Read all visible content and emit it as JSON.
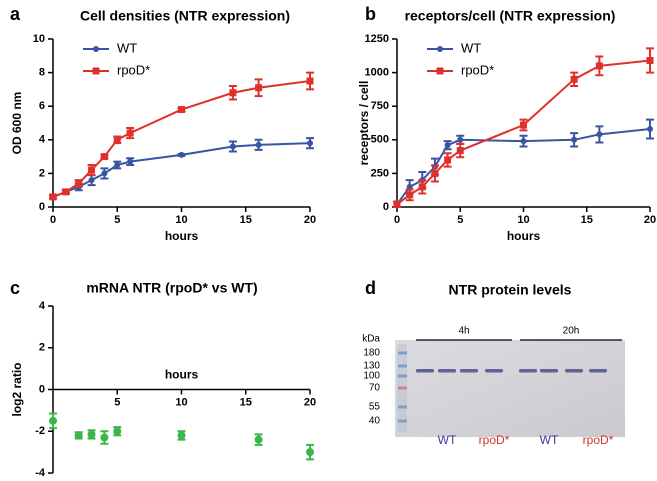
{
  "chart_data": [
    {
      "type": "line",
      "panel": "a",
      "title": "Cell densities (NTR expression)",
      "xlabel": "hours",
      "ylabel": "OD 600 nm",
      "xlim": [
        0,
        20
      ],
      "xticks": [
        0,
        5,
        10,
        15,
        20
      ],
      "ylim": [
        0,
        10
      ],
      "yticks": [
        0,
        2,
        4,
        6,
        8,
        10
      ],
      "legend": "upper-left",
      "series": [
        {
          "name": "WT",
          "color": "#3a54a4",
          "marker": "circle",
          "x": [
            0,
            1,
            2,
            3,
            4,
            5,
            6,
            10,
            14,
            16,
            20
          ],
          "values": [
            0.6,
            0.9,
            1.2,
            1.6,
            2.0,
            2.5,
            2.7,
            3.1,
            3.6,
            3.7,
            3.8
          ],
          "error": [
            0.1,
            0.1,
            0.2,
            0.3,
            0.3,
            0.2,
            0.2,
            0.05,
            0.3,
            0.3,
            0.3
          ]
        },
        {
          "name": "rpoD*",
          "color": "#e0302b",
          "marker": "square",
          "x": [
            0,
            1,
            2,
            3,
            4,
            5,
            6,
            10,
            14,
            16,
            20
          ],
          "values": [
            0.6,
            0.9,
            1.4,
            2.2,
            3.0,
            4.0,
            4.4,
            5.8,
            6.8,
            7.1,
            7.5
          ],
          "error": [
            0.1,
            0.1,
            0.2,
            0.3,
            0.1,
            0.2,
            0.3,
            0.1,
            0.4,
            0.5,
            0.5
          ]
        }
      ]
    },
    {
      "type": "line",
      "panel": "b",
      "title": "receptors/cell (NTR expression)",
      "xlabel": "hours",
      "ylabel": "receptors / cell",
      "xlim": [
        0,
        20
      ],
      "xticks": [
        0,
        5,
        10,
        15,
        20
      ],
      "ylim": [
        0,
        1250
      ],
      "yticks": [
        0,
        250,
        500,
        750,
        1000,
        1250
      ],
      "legend": "upper-left",
      "series": [
        {
          "name": "WT",
          "color": "#3a54a4",
          "marker": "circle",
          "x": [
            0,
            1,
            2,
            3,
            4,
            5,
            10,
            14,
            16,
            20
          ],
          "values": [
            20,
            150,
            200,
            300,
            460,
            500,
            490,
            500,
            540,
            580
          ],
          "error": [
            20,
            50,
            60,
            60,
            30,
            30,
            40,
            50,
            60,
            70
          ]
        },
        {
          "name": "rpoD*",
          "color": "#e0302b",
          "marker": "square",
          "x": [
            0,
            1,
            2,
            3,
            4,
            5,
            10,
            14,
            16,
            20
          ],
          "values": [
            20,
            90,
            150,
            250,
            350,
            420,
            610,
            950,
            1050,
            1090
          ],
          "error": [
            20,
            40,
            50,
            60,
            50,
            50,
            40,
            50,
            70,
            90
          ]
        }
      ]
    },
    {
      "type": "scatter",
      "panel": "c",
      "title": "mRNA NTR (rpoD* vs WT)",
      "xlabel": "hours",
      "ylabel": "log2 ratio",
      "xlim": [
        0,
        20
      ],
      "xticks": [
        5,
        10,
        15,
        20
      ],
      "ylim": [
        -4,
        4
      ],
      "yticks": [
        -4,
        -2,
        0,
        2,
        4
      ],
      "series": [
        {
          "color": "#3cb54a",
          "marker": "circle",
          "x": [
            0,
            2,
            3,
            4,
            5,
            10,
            16,
            20
          ],
          "values": [
            -1.5,
            -2.2,
            -2.15,
            -2.3,
            -2.0,
            -2.2,
            -2.4,
            -3.0
          ],
          "error": [
            0.35,
            0.15,
            0.2,
            0.3,
            0.2,
            0.2,
            0.25,
            0.35
          ]
        }
      ]
    }
  ],
  "gel": {
    "panel": "d",
    "title": "NTR protein levels",
    "unit": "kDa",
    "markers": [
      180,
      130,
      100,
      70,
      55,
      40
    ],
    "groups": [
      "4h",
      "20h"
    ],
    "lanes": [
      {
        "label": "WT",
        "color": "#3a3aa0"
      },
      {
        "label": "rpoD*",
        "color": "#d83030"
      },
      {
        "label": "WT",
        "color": "#3a3aa0"
      },
      {
        "label": "rpoD*",
        "color": "#d83030"
      }
    ]
  }
}
